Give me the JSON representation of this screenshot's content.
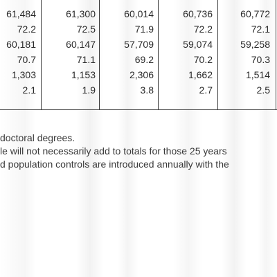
{
  "table": {
    "rows": [
      {
        "cells": [
          "61,484",
          "61,300",
          "60,014",
          "60,736",
          "60,772"
        ]
      },
      {
        "cells": [
          "72.2",
          "72.5",
          "71.9",
          "72.2",
          "72.1"
        ]
      },
      {
        "cells": [
          "60,181",
          "60,147",
          "57,709",
          "59,074",
          "59,258"
        ]
      },
      {
        "cells": [
          "70.7",
          "71.1",
          "69.2",
          "70.2",
          "70.3"
        ]
      },
      {
        "cells": [
          "1,303",
          "1,153",
          "2,306",
          "1,662",
          "1,514"
        ]
      },
      {
        "cells": [
          "2.1",
          "1.9",
          "3.8",
          "2.7",
          "2.5"
        ]
      }
    ]
  },
  "notes": {
    "line1": "doctoral degrees.",
    "line2": "le will not necessarily add to totals for those 25 years",
    "line3": "d population controls are introduced annually with the"
  }
}
